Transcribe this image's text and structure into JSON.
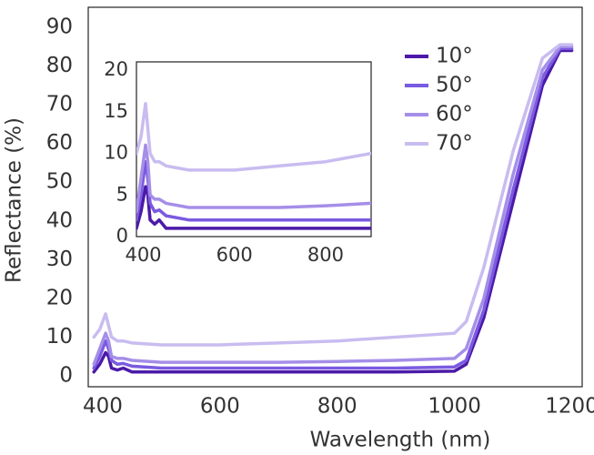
{
  "chart_data": {
    "type": "line",
    "xlabel": "Wavelength (nm)",
    "ylabel": "Reflectance (%)",
    "xlim": [
      380,
      1210
    ],
    "xticks": [
      400,
      600,
      800,
      1000,
      1200
    ],
    "ylim": [
      0,
      90
    ],
    "yticks": [
      0,
      10,
      20,
      30,
      40,
      50,
      60,
      70,
      80,
      90
    ],
    "legend": "upper right",
    "x": [
      385,
      395,
      405,
      410,
      415,
      425,
      435,
      450,
      500,
      600,
      700,
      800,
      900,
      1000,
      1020,
      1050,
      1100,
      1150,
      1180,
      1200
    ],
    "series": [
      {
        "name": "10°",
        "color": "#4b1aa8",
        "values": [
          1,
          3,
          6,
          5,
          2,
          1.5,
          2,
          1,
          1,
          1,
          1,
          1,
          1,
          1.2,
          3,
          15,
          45,
          75,
          84,
          84
        ]
      },
      {
        "name": "50°",
        "color": "#7a5ae0",
        "values": [
          2,
          5,
          9,
          7,
          4,
          3,
          3.2,
          2.5,
          2,
          2,
          2,
          2,
          2,
          2.3,
          4,
          17,
          48,
          77,
          84.5,
          84.5
        ]
      },
      {
        "name": "60°",
        "color": "#a58ee8",
        "values": [
          3,
          7,
          11,
          9,
          5,
          4.5,
          4.5,
          4,
          3.5,
          3.5,
          3.5,
          3.7,
          4,
          4.5,
          7,
          20,
          52,
          79,
          85,
          85
        ]
      },
      {
        "name": "70°",
        "color": "#c9bcf0",
        "values": [
          10,
          12,
          16,
          13,
          10,
          9,
          9,
          8.5,
          8,
          8,
          8.5,
          9,
          10,
          11,
          14,
          28,
          58,
          82,
          85.5,
          85.5
        ]
      }
    ],
    "inset": {
      "xlim": [
        385,
        900
      ],
      "xticks": [
        400,
        600,
        800
      ],
      "ylim": [
        0,
        21
      ],
      "yticks": [
        0,
        5,
        10,
        15,
        20
      ]
    }
  }
}
